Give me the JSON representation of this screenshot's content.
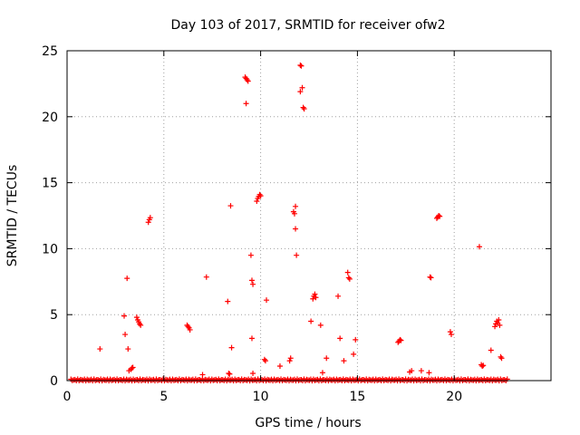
{
  "chart_data": {
    "type": "scatter",
    "title": "Day 103 of 2017, SRMTID for receiver ofw2",
    "xlabel": "GPS time / hours",
    "ylabel": "SRMTID / TECUs",
    "xlim": [
      0,
      25
    ],
    "ylim": [
      0,
      25
    ],
    "xticks": [
      0,
      5,
      10,
      15,
      20
    ],
    "yticks": [
      0,
      5,
      10,
      15,
      20,
      25
    ],
    "grid": true,
    "marker": "plus",
    "color": "#ff0000",
    "baseline": {
      "y": 0.05,
      "x_start": 0.2,
      "x_end": 22.8,
      "step": 0.07
    },
    "points": [
      [
        1.7,
        2.4
      ],
      [
        2.95,
        4.9
      ],
      [
        3.0,
        3.5
      ],
      [
        3.1,
        7.75
      ],
      [
        3.15,
        2.4
      ],
      [
        3.2,
        0.75
      ],
      [
        3.3,
        0.85
      ],
      [
        3.35,
        0.95
      ],
      [
        3.4,
        1.0
      ],
      [
        3.6,
        4.8
      ],
      [
        3.65,
        4.6
      ],
      [
        3.7,
        4.45
      ],
      [
        3.75,
        4.3
      ],
      [
        3.8,
        4.2
      ],
      [
        4.2,
        12.0
      ],
      [
        4.25,
        12.2
      ],
      [
        4.3,
        12.35
      ],
      [
        6.2,
        4.2
      ],
      [
        6.25,
        4.1
      ],
      [
        6.3,
        4.0
      ],
      [
        6.35,
        3.85
      ],
      [
        7.0,
        0.45
      ],
      [
        7.2,
        7.85
      ],
      [
        8.3,
        6.0
      ],
      [
        8.35,
        0.55
      ],
      [
        8.4,
        0.5
      ],
      [
        8.45,
        13.25
      ],
      [
        8.5,
        2.5
      ],
      [
        9.2,
        23.0
      ],
      [
        9.25,
        22.9
      ],
      [
        9.3,
        22.8
      ],
      [
        9.35,
        22.7
      ],
      [
        9.25,
        21.0
      ],
      [
        9.5,
        9.5
      ],
      [
        9.55,
        7.6
      ],
      [
        9.6,
        7.3
      ],
      [
        9.55,
        3.2
      ],
      [
        9.6,
        0.55
      ],
      [
        9.8,
        13.6
      ],
      [
        9.85,
        13.8
      ],
      [
        9.9,
        13.95
      ],
      [
        9.95,
        14.1
      ],
      [
        10.0,
        14.0
      ],
      [
        10.2,
        1.6
      ],
      [
        10.25,
        1.5
      ],
      [
        10.3,
        6.1
      ],
      [
        11.0,
        1.1
      ],
      [
        11.5,
        1.5
      ],
      [
        11.55,
        1.7
      ],
      [
        11.7,
        12.8
      ],
      [
        11.75,
        12.65
      ],
      [
        11.8,
        13.2
      ],
      [
        11.8,
        11.5
      ],
      [
        11.85,
        9.5
      ],
      [
        12.05,
        23.9
      ],
      [
        12.1,
        23.85
      ],
      [
        12.15,
        22.2
      ],
      [
        12.05,
        21.9
      ],
      [
        12.2,
        20.7
      ],
      [
        12.25,
        20.6
      ],
      [
        12.6,
        4.5
      ],
      [
        12.7,
        6.2
      ],
      [
        12.75,
        6.4
      ],
      [
        12.8,
        6.55
      ],
      [
        12.85,
        6.3
      ],
      [
        13.1,
        4.2
      ],
      [
        13.2,
        0.6
      ],
      [
        13.4,
        1.7
      ],
      [
        14.0,
        6.4
      ],
      [
        14.1,
        3.2
      ],
      [
        14.3,
        1.5
      ],
      [
        14.5,
        8.2
      ],
      [
        14.55,
        7.8
      ],
      [
        14.6,
        7.7
      ],
      [
        14.8,
        2.0
      ],
      [
        14.9,
        3.1
      ],
      [
        17.1,
        2.9
      ],
      [
        17.15,
        3.0
      ],
      [
        17.2,
        3.1
      ],
      [
        17.25,
        3.05
      ],
      [
        17.7,
        0.65
      ],
      [
        17.8,
        0.75
      ],
      [
        18.3,
        0.75
      ],
      [
        18.7,
        0.6
      ],
      [
        18.75,
        7.85
      ],
      [
        18.8,
        7.8
      ],
      [
        19.1,
        12.3
      ],
      [
        19.15,
        12.4
      ],
      [
        19.2,
        12.5
      ],
      [
        19.25,
        12.45
      ],
      [
        19.8,
        3.7
      ],
      [
        19.85,
        3.5
      ],
      [
        21.3,
        10.15
      ],
      [
        21.4,
        1.2
      ],
      [
        21.45,
        1.1
      ],
      [
        21.5,
        1.15
      ],
      [
        21.9,
        2.3
      ],
      [
        22.1,
        4.1
      ],
      [
        22.15,
        4.3
      ],
      [
        22.2,
        4.5
      ],
      [
        22.25,
        4.35
      ],
      [
        22.3,
        4.6
      ],
      [
        22.35,
        4.2
      ],
      [
        22.4,
        1.8
      ],
      [
        22.45,
        1.7
      ]
    ]
  }
}
